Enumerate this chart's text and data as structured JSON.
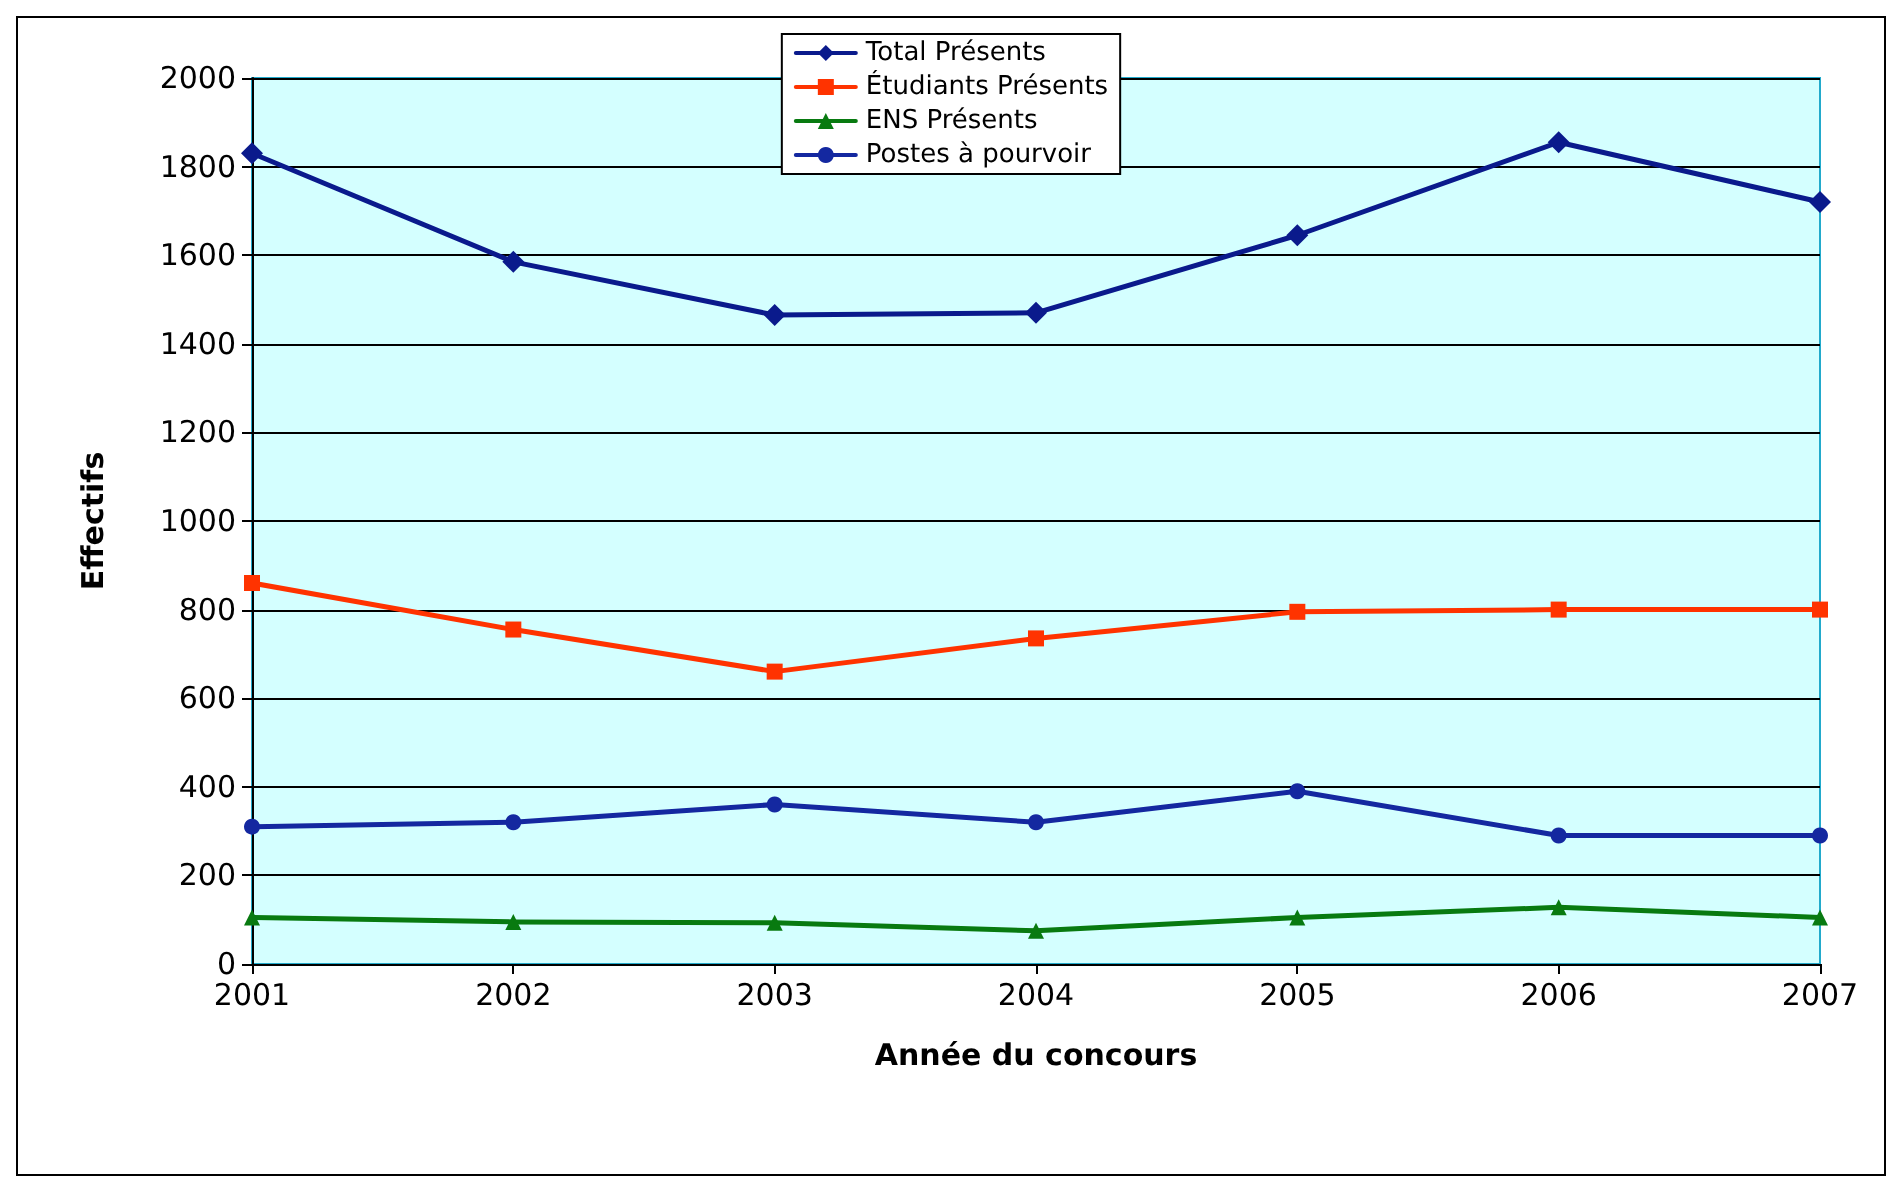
{
  "chart_data": {
    "type": "line",
    "xlabel": "Année du concours",
    "ylabel": "Effectifs",
    "categories": [
      "2001",
      "2002",
      "2003",
      "2004",
      "2005",
      "2006",
      "2007"
    ],
    "series": [
      {
        "name": "Total Présents",
        "color": "#0a1a8c",
        "marker": "diamond",
        "values": [
          1830,
          1585,
          1465,
          1470,
          1645,
          1855,
          1720
        ]
      },
      {
        "name": "Étudiants Présents",
        "color": "#ff3300",
        "marker": "square",
        "values": [
          860,
          755,
          660,
          735,
          795,
          800,
          800
        ]
      },
      {
        "name": "ENS Présents",
        "color": "#087a10",
        "marker": "triangle",
        "values": [
          105,
          95,
          93,
          75,
          105,
          128,
          105
        ]
      },
      {
        "name": "Postes à pourvoir",
        "color": "#1428a0",
        "marker": "circle",
        "values": [
          310,
          320,
          360,
          320,
          390,
          290,
          290
        ]
      }
    ],
    "ylim": [
      0,
      2000
    ],
    "yticks": [
      0,
      200,
      400,
      600,
      800,
      1000,
      1200,
      1400,
      1600,
      1800,
      2000
    ],
    "grid": "y",
    "legend": "top",
    "line_style": "solid"
  }
}
